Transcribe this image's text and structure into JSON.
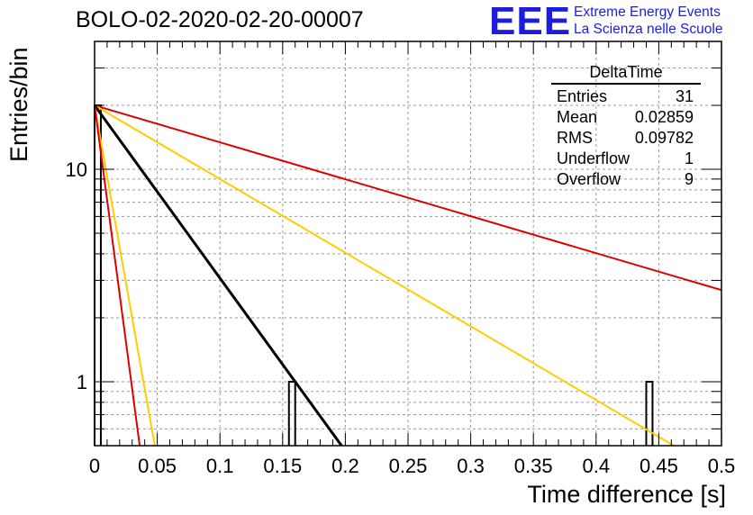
{
  "title": "BOLO-02-2020-02-20-00007",
  "logo": {
    "mark": "EEE",
    "line1": "Extreme Energy Events",
    "line2": "La Scienza nelle Scuole"
  },
  "stats_box": {
    "title": "DeltaTime",
    "rows": [
      {
        "label": "Entries",
        "value": "31"
      },
      {
        "label": "Mean",
        "value": "0.02859"
      },
      {
        "label": "RMS",
        "value": "0.09782"
      },
      {
        "label": "Underflow",
        "value": "1"
      },
      {
        "label": "Overflow",
        "value": "9"
      }
    ]
  },
  "chart_data": {
    "type": "bar",
    "title": "BOLO-02-2020-02-20-00007",
    "xlabel": "Time difference [s]",
    "ylabel": "Entries/bin",
    "xlim": [
      0,
      0.5
    ],
    "ylim": [
      0.5,
      40
    ],
    "yscale": "log",
    "grid": true,
    "x_ticks": [
      "0",
      "0.05",
      "0.1",
      "0.15",
      "0.2",
      "0.25",
      "0.3",
      "0.35",
      "0.4",
      "0.45",
      "0.5"
    ],
    "y_ticks": [
      "1",
      "10"
    ],
    "histogram_bins": [
      {
        "x0": 0.0,
        "x1": 0.005,
        "entries": 20
      },
      {
        "x0": 0.155,
        "x1": 0.16,
        "entries": 1
      },
      {
        "x0": 0.44,
        "x1": 0.445,
        "entries": 1
      }
    ],
    "fit_lines": [
      {
        "color": "#dd0000",
        "points": [
          [
            0,
            20
          ],
          [
            0.5,
            2.7
          ]
        ]
      },
      {
        "color": "#ffcc00",
        "points": [
          [
            0,
            20
          ],
          [
            0.462,
            0.5
          ]
        ]
      },
      {
        "color": "#000000",
        "points": [
          [
            0,
            20
          ],
          [
            0.197,
            0.5
          ]
        ]
      },
      {
        "color": "#ffcc00",
        "points": [
          [
            0,
            20
          ],
          [
            0.048,
            0.5
          ]
        ]
      },
      {
        "color": "#dd0000",
        "points": [
          [
            0,
            20
          ],
          [
            0.036,
            0.5
          ]
        ]
      }
    ]
  }
}
